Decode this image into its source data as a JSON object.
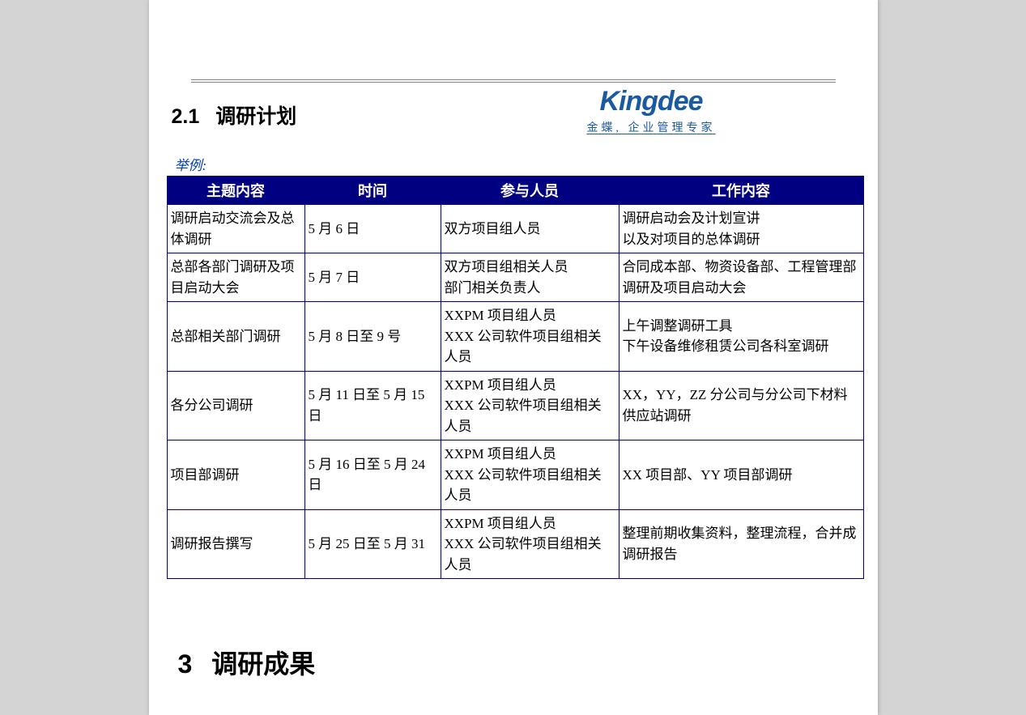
{
  "logo": {
    "brand": "Kingdee",
    "subtitle": "金蝶, 企业管理专家",
    "brand_color": "#1a5aa0"
  },
  "section_2_1": {
    "number": "2.1",
    "title": "调研计划"
  },
  "example_label": "举例:",
  "table": {
    "header_bg": "#000080",
    "header_fg": "#ffffff",
    "border_color": "#000080",
    "columns": [
      "主题内容",
      "时间",
      "参与人员",
      "工作内容"
    ],
    "rows": [
      {
        "topic": "调研启动交流会及总体调研",
        "time": "5 月 6 日",
        "people": "双方项目组人员",
        "work": "调研启动会及计划宣讲\n以及对项目的总体调研"
      },
      {
        "topic": "总部各部门调研及项目启动大会",
        "time": "5 月 7 日",
        "people": "双方项目组相关人员\n部门相关负责人",
        "work": "合同成本部、物资设备部、工程管理部调研及项目启动大会"
      },
      {
        "topic": "总部相关部门调研",
        "time": "5 月 8 日至 9 号",
        "people": "XXPM 项目组人员\nXXX 公司软件项目组相关人员",
        "work": "上午调整调研工具\n下午设备维修租赁公司各科室调研"
      },
      {
        "topic": "各分公司调研",
        "time": "5 月 11 日至 5 月 15 日",
        "people": "XXPM 项目组人员\nXXX 公司软件项目组相关人员",
        "work": "XX，YY，ZZ 分公司与分公司下材料供应站调研"
      },
      {
        "topic": "项目部调研",
        "time": "5 月 16 日至 5 月 24 日",
        "people": "XXPM 项目组人员\nXXX 公司软件项目组相关人员",
        "work": "XX 项目部、YY 项目部调研"
      },
      {
        "topic": "调研报告撰写",
        "time": "5 月 25 日至 5 月 31",
        "people": "XXPM 项目组人员\nXXX 公司软件项目组相关人员",
        "work": "整理前期收集资料，整理流程，合并成调研报告"
      }
    ]
  },
  "chapter_3": {
    "number": "3",
    "title": "调研成果"
  }
}
